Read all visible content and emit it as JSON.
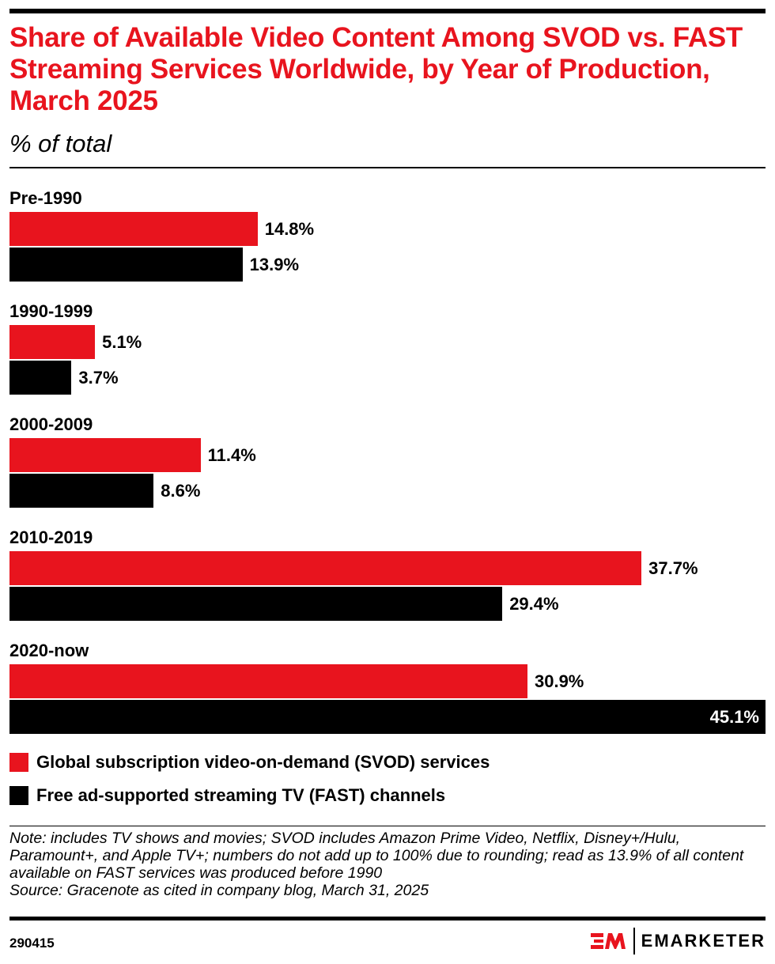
{
  "header": {
    "title": "Share of Available Video Content Among SVOD vs. FAST Streaming Services Worldwide, by Year of Production, March 2025",
    "subtitle": "% of total"
  },
  "chart_data": {
    "type": "bar",
    "orientation": "horizontal",
    "title": "Share of Available Video Content Among SVOD vs. FAST Streaming Services Worldwide, by Year of Production, March 2025",
    "subtitle": "% of total",
    "categories": [
      "Pre-1990",
      "1990-1999",
      "2000-2009",
      "2010-2019",
      "2020-now"
    ],
    "series": [
      {
        "name": "Global subscription video-on-demand (SVOD) services",
        "color": "#e8141e",
        "values": [
          14.8,
          5.1,
          11.4,
          37.7,
          30.9
        ],
        "labels": [
          "14.8%",
          "5.1%",
          "11.4%",
          "37.7%",
          "30.9%"
        ]
      },
      {
        "name": "Free ad-supported streaming TV (FAST) channels",
        "color": "#000000",
        "values": [
          13.9,
          3.7,
          8.6,
          29.4,
          45.1
        ],
        "labels": [
          "13.9%",
          "3.7%",
          "8.6%",
          "29.4%",
          "45.1%"
        ]
      }
    ],
    "xlim": [
      0,
      45.1
    ],
    "grid": false,
    "legend_placement": "bottom-left"
  },
  "footer": {
    "note": "Note: includes TV shows and movies; SVOD includes Amazon Prime Video, Netflix, Disney+/Hulu, Paramount+, and Apple TV+; numbers do not add up to 100% due to rounding; read as 13.9% of all content available on FAST services was produced before 1990",
    "source": "Source: Gracenote as cited in company blog, March 31, 2025",
    "id": "290415",
    "brand": "EMARKETER",
    "logo_mark": "EM"
  }
}
